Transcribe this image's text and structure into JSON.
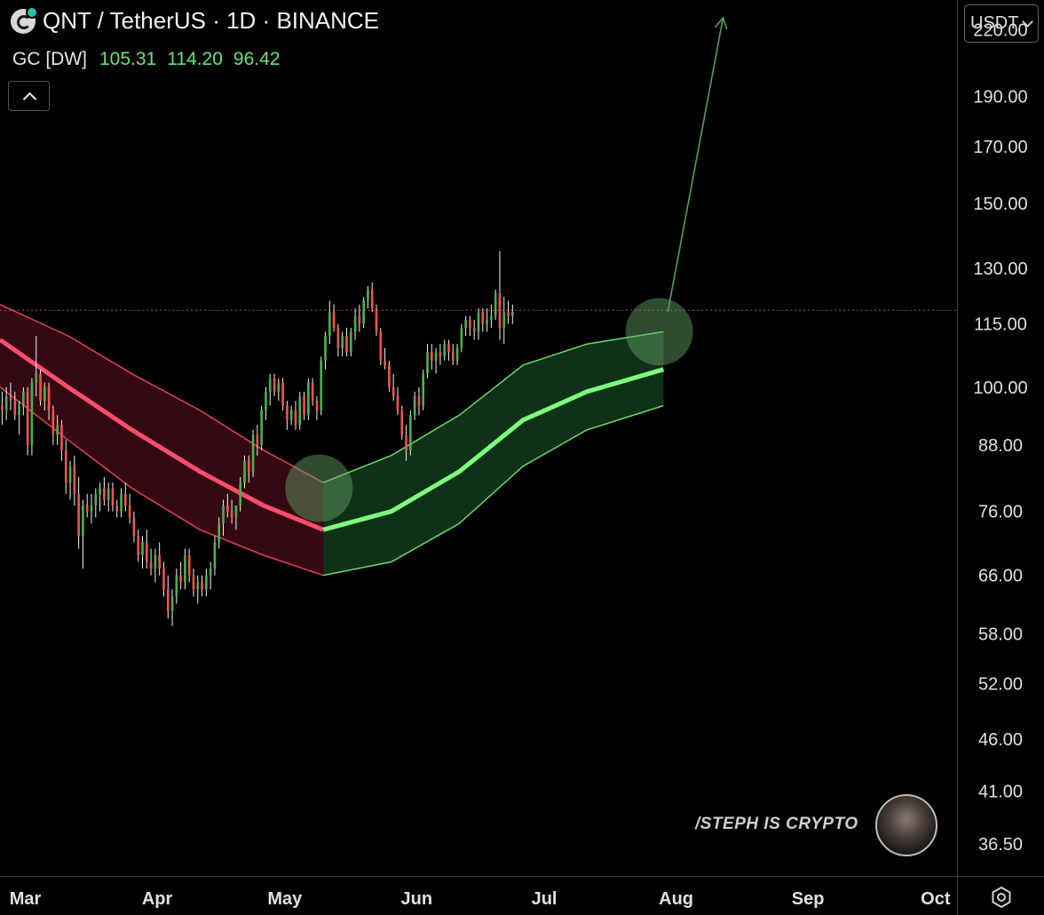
{
  "header": {
    "symbol_title": "QNT / TetherUS · 1D · BINANCE",
    "indicator_label": "GC [DW]",
    "indicator_values": [
      "105.31",
      "114.20",
      "96.42"
    ]
  },
  "price_axis": {
    "currency_label": "USDT",
    "ticks": [
      "220.00",
      "190.00",
      "170.00",
      "150.00",
      "130.00",
      "115.00",
      "100.00",
      "88.00",
      "76.00",
      "66.00",
      "58.00",
      "52.00",
      "46.00",
      "41.00",
      "36.50"
    ]
  },
  "time_axis": {
    "ticks": [
      "Mar",
      "Apr",
      "May",
      "Jun",
      "Jul",
      "Aug",
      "Sep",
      "Oct"
    ]
  },
  "watermark": "/STEPH IS CRYPTO",
  "colors": {
    "background": "#000000",
    "up": "#4caf50",
    "down": "#ef5350",
    "band_bear": "#ff4d6d",
    "band_bull": "#7dff7d",
    "fill_bear": "#3a0a14",
    "fill_bull": "#10361a",
    "annotation": "#58a05a"
  },
  "chart_data": {
    "type": "candlestick",
    "symbol": "QNT / TetherUS",
    "interval": "1D",
    "exchange": "BINANCE",
    "scale": "log",
    "ylim": [
      34,
      235
    ],
    "x_range": [
      "2023-02-22",
      "2023-10-05"
    ],
    "last_price": 118.5,
    "indicator": {
      "name": "GC [DW]",
      "values": [
        105.31,
        114.2,
        96.42
      ],
      "bearish_segment": {
        "dates": [
          "2023-02-22",
          "2023-03-10",
          "2023-03-25",
          "2023-04-10",
          "2023-04-25",
          "2023-05-09"
        ],
        "basis": [
          111,
          100,
          91,
          83,
          77,
          73
        ],
        "upper": [
          120,
          112,
          103,
          95,
          87,
          81
        ],
        "lower": [
          100,
          89,
          80,
          73,
          69,
          66
        ]
      },
      "bullish_segment": {
        "dates": [
          "2023-05-09",
          "2023-05-25",
          "2023-06-10",
          "2023-06-25",
          "2023-07-10",
          "2023-07-28"
        ],
        "basis": [
          73,
          76,
          83,
          93,
          99,
          104
        ],
        "upper": [
          81,
          86,
          94,
          105,
          110,
          113
        ],
        "lower": [
          66,
          68,
          74,
          84,
          91,
          96
        ]
      }
    },
    "candles_ohlc": [
      [
        96,
        99,
        92,
        95
      ],
      [
        95,
        100,
        93,
        98
      ],
      [
        98,
        101,
        95,
        97
      ],
      [
        97,
        99,
        93,
        94
      ],
      [
        94,
        97,
        90,
        96
      ],
      [
        96,
        100,
        94,
        99
      ],
      [
        99,
        100,
        86,
        88
      ],
      [
        88,
        102,
        86,
        101
      ],
      [
        101,
        112,
        98,
        103
      ],
      [
        103,
        104,
        96,
        97
      ],
      [
        97,
        101,
        95,
        100
      ],
      [
        100,
        101,
        93,
        95
      ],
      [
        95,
        96,
        88,
        90
      ],
      [
        90,
        94,
        88,
        92
      ],
      [
        92,
        93,
        85,
        87
      ],
      [
        87,
        89,
        79,
        81
      ],
      [
        81,
        85,
        78,
        84
      ],
      [
        84,
        86,
        77,
        79
      ],
      [
        79,
        82,
        70,
        72
      ],
      [
        72,
        78,
        67,
        77
      ],
      [
        77,
        79,
        75,
        76
      ],
      [
        76,
        79,
        74,
        77
      ],
      [
        77,
        80,
        75,
        79
      ],
      [
        79,
        81,
        76,
        80
      ],
      [
        80,
        82,
        77,
        78
      ],
      [
        78,
        81,
        76,
        80
      ],
      [
        80,
        81,
        76,
        77
      ],
      [
        77,
        78,
        75,
        76
      ],
      [
        76,
        80,
        75,
        79
      ],
      [
        79,
        81,
        76,
        77
      ],
      [
        77,
        79,
        74,
        75
      ],
      [
        75,
        76,
        71,
        72
      ],
      [
        72,
        73,
        68,
        69
      ],
      [
        69,
        72,
        67,
        71
      ],
      [
        71,
        73,
        67,
        68
      ],
      [
        68,
        70,
        66,
        67
      ],
      [
        67,
        70,
        65,
        69
      ],
      [
        69,
        71,
        66,
        67
      ],
      [
        67,
        68,
        63,
        64
      ],
      [
        64,
        66,
        60,
        61
      ],
      [
        61,
        64,
        59,
        63
      ],
      [
        63,
        67,
        62,
        66
      ],
      [
        66,
        68,
        64,
        65
      ],
      [
        65,
        70,
        64,
        69
      ],
      [
        69,
        70,
        65,
        66
      ],
      [
        66,
        67,
        63,
        64
      ],
      [
        64,
        66,
        62,
        65
      ],
      [
        65,
        66,
        63,
        64
      ],
      [
        64,
        67,
        63,
        66
      ],
      [
        66,
        68,
        64,
        67
      ],
      [
        67,
        72,
        66,
        71
      ],
      [
        71,
        75,
        70,
        74
      ],
      [
        74,
        78,
        72,
        77
      ],
      [
        77,
        79,
        75,
        76
      ],
      [
        76,
        78,
        74,
        75
      ],
      [
        75,
        77,
        73,
        77
      ],
      [
        77,
        82,
        76,
        81
      ],
      [
        81,
        86,
        80,
        85
      ],
      [
        85,
        86,
        81,
        83
      ],
      [
        83,
        91,
        82,
        90
      ],
      [
        90,
        92,
        86,
        88
      ],
      [
        88,
        96,
        87,
        95
      ],
      [
        95,
        100,
        93,
        99
      ],
      [
        99,
        103,
        96,
        102
      ],
      [
        102,
        103,
        98,
        99
      ],
      [
        99,
        102,
        97,
        101
      ],
      [
        101,
        102,
        95,
        96
      ],
      [
        96,
        97,
        91,
        93
      ],
      [
        93,
        96,
        92,
        95
      ],
      [
        95,
        97,
        91,
        92
      ],
      [
        92,
        99,
        91,
        98
      ],
      [
        98,
        99,
        93,
        94
      ],
      [
        94,
        102,
        93,
        101
      ],
      [
        101,
        102,
        96,
        97
      ],
      [
        97,
        98,
        93,
        95
      ],
      [
        95,
        107,
        94,
        106
      ],
      [
        106,
        113,
        104,
        112
      ],
      [
        112,
        121,
        110,
        118
      ],
      [
        118,
        120,
        113,
        114
      ],
      [
        114,
        115,
        107,
        109
      ],
      [
        109,
        113,
        107,
        112
      ],
      [
        112,
        114,
        107,
        108
      ],
      [
        108,
        114,
        107,
        113
      ],
      [
        113,
        119,
        111,
        117
      ],
      [
        117,
        120,
        113,
        115
      ],
      [
        115,
        122,
        114,
        121
      ],
      [
        121,
        125,
        119,
        124
      ],
      [
        124,
        126,
        118,
        119
      ],
      [
        119,
        120,
        112,
        113
      ],
      [
        113,
        114,
        105,
        106
      ],
      [
        106,
        109,
        104,
        105
      ],
      [
        105,
        106,
        99,
        100
      ],
      [
        100,
        103,
        97,
        98
      ],
      [
        98,
        100,
        94,
        95
      ],
      [
        95,
        96,
        89,
        90
      ],
      [
        90,
        92,
        85,
        87
      ],
      [
        87,
        95,
        86,
        94
      ],
      [
        94,
        99,
        93,
        98
      ],
      [
        98,
        100,
        94,
        96
      ],
      [
        96,
        104,
        95,
        103
      ],
      [
        103,
        110,
        102,
        108
      ],
      [
        108,
        110,
        104,
        106
      ],
      [
        106,
        109,
        103,
        108
      ],
      [
        108,
        110,
        105,
        107
      ],
      [
        107,
        111,
        106,
        110
      ],
      [
        110,
        111,
        106,
        108
      ],
      [
        108,
        110,
        105,
        106
      ],
      [
        106,
        110,
        105,
        109
      ],
      [
        109,
        115,
        108,
        114
      ],
      [
        114,
        117,
        112,
        116
      ],
      [
        116,
        117,
        112,
        114
      ],
      [
        114,
        116,
        111,
        113
      ],
      [
        113,
        119,
        111,
        118
      ],
      [
        118,
        119,
        113,
        115
      ],
      [
        115,
        119,
        113,
        116
      ],
      [
        116,
        120,
        114,
        117
      ],
      [
        117,
        124,
        116,
        123
      ],
      [
        123,
        135,
        111,
        114
      ],
      [
        114,
        122,
        110,
        118
      ],
      [
        118,
        121,
        115,
        117
      ],
      [
        117,
        120,
        115,
        118
      ]
    ],
    "annotations": [
      {
        "type": "circle",
        "date": "2023-05-08",
        "price": 80
      },
      {
        "type": "circle",
        "date": "2023-07-27",
        "price": 113
      },
      {
        "type": "arrow",
        "from_date": "2023-07-29",
        "from_price": 118,
        "to_date": "2023-08-11",
        "to_price": 226
      }
    ]
  }
}
